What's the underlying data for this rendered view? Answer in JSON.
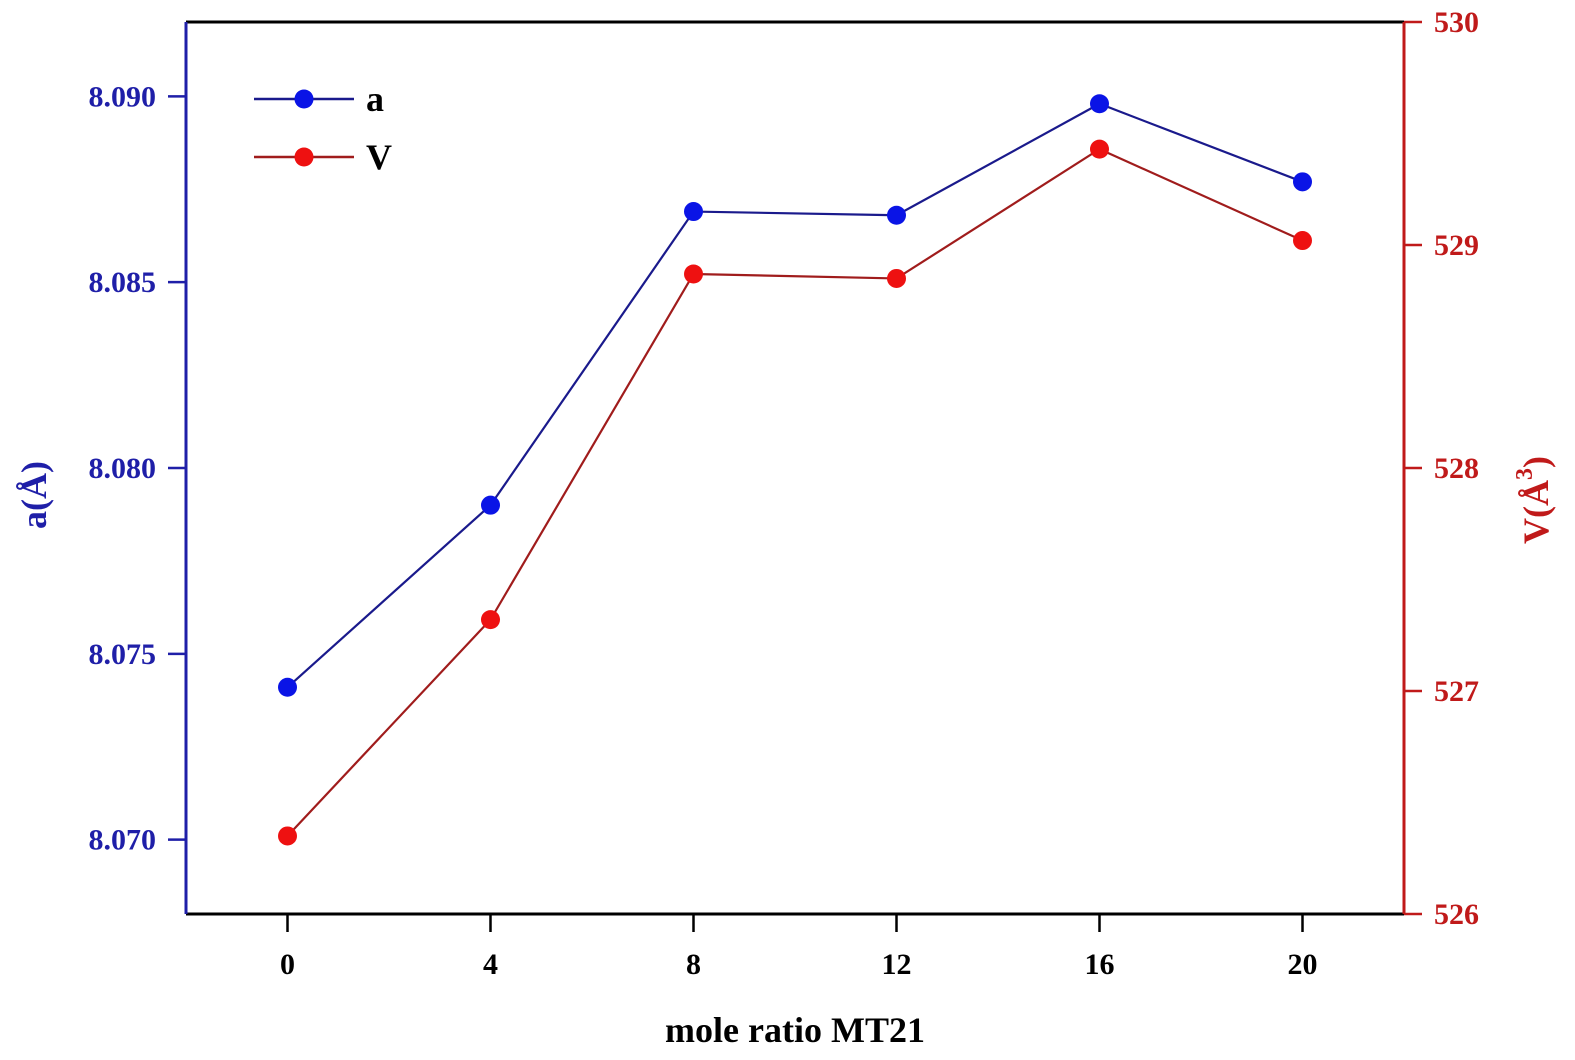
{
  "chart_data": {
    "type": "line",
    "title": "",
    "xlabel": "mole ratio MT21",
    "ylabel_left": "a(Å)",
    "ylabel_right_main": "V(Å",
    "ylabel_right_sup": "3",
    "ylabel_right_close": ")",
    "x": [
      0,
      4,
      8,
      12,
      16,
      20
    ],
    "x_ticks": [
      "0",
      "4",
      "8",
      "12",
      "16",
      "20"
    ],
    "xlim": [
      -2,
      22
    ],
    "ylim_left": [
      8.068,
      8.092
    ],
    "ylim_right": [
      526,
      530
    ],
    "y_ticks_left": [
      "8.070",
      "8.075",
      "8.080",
      "8.085",
      "8.090"
    ],
    "y_ticks_right": [
      "526",
      "527",
      "528",
      "529",
      "530"
    ],
    "series": [
      {
        "name": "a",
        "axis": "left",
        "values": [
          8.0741,
          8.079,
          8.0869,
          8.0868,
          8.0898,
          8.0877
        ],
        "line_color": "#1a1a8c",
        "marker_color": "#0a14e6"
      },
      {
        "name": "V",
        "axis": "right",
        "values": [
          526.35,
          527.32,
          528.87,
          528.85,
          529.43,
          529.02
        ],
        "line_color": "#a01c1c",
        "marker_color": "#ee1111"
      }
    ],
    "legend": {
      "position": "top-left",
      "entries": [
        "a",
        "V"
      ]
    },
    "grid": false,
    "colors": {
      "left_axis": "#1f1fa8",
      "right_axis": "#c01a1a",
      "frame": "#000000"
    }
  }
}
